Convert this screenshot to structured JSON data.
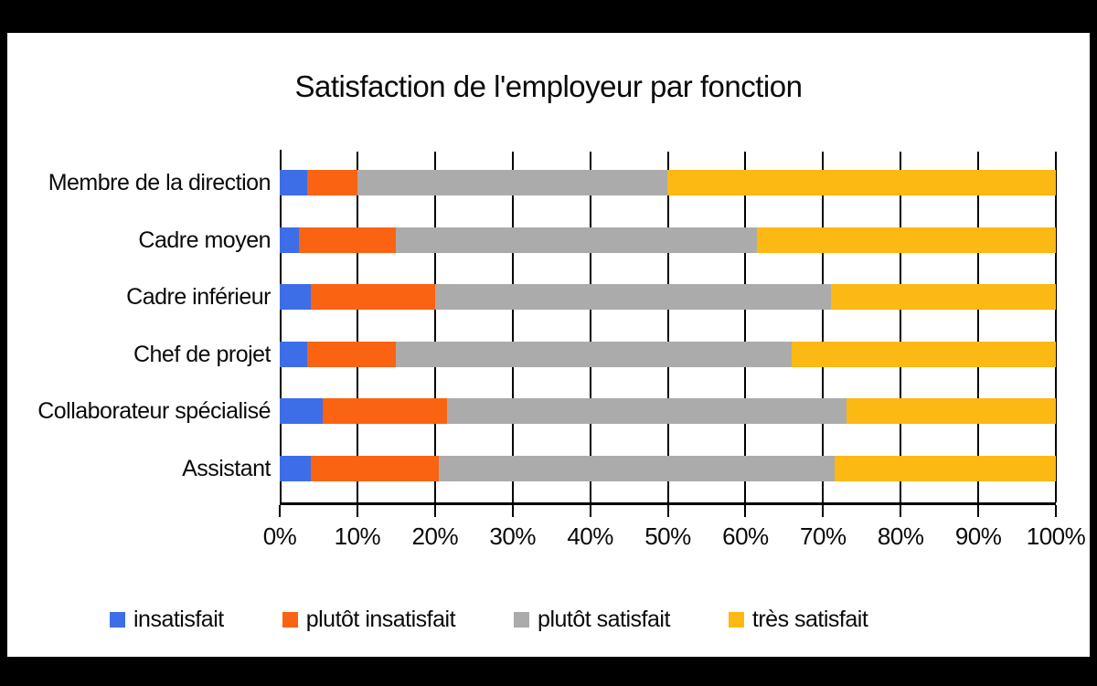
{
  "frame": {
    "border_color": "#000000",
    "background_color": "#ffffff"
  },
  "chart_data": {
    "type": "bar",
    "orientation": "horizontal",
    "stacked": true,
    "title": "Satisfaction de l'employeur par fonction",
    "categories": [
      "Membre de la direction",
      "Cadre moyen",
      "Cadre inférieur",
      "Chef de projet",
      "Collaborateur spécialisé",
      "Assistant"
    ],
    "series": [
      {
        "name": "insatisfait",
        "color": "#3d6ee7",
        "values": [
          3.5,
          2.5,
          4.0,
          3.5,
          5.5,
          4.0
        ]
      },
      {
        "name": "plutôt insatisfait",
        "color": "#f96312",
        "values": [
          6.5,
          12.5,
          16.0,
          11.5,
          16.0,
          16.5
        ]
      },
      {
        "name": "plutôt satisfait",
        "color": "#ababab",
        "values": [
          40.0,
          46.5,
          51.0,
          51.0,
          51.5,
          51.0
        ]
      },
      {
        "name": "très satisfait",
        "color": "#fcb813",
        "values": [
          50.0,
          38.5,
          29.0,
          34.0,
          27.0,
          28.5
        ]
      }
    ],
    "x_axis": {
      "min": 0,
      "max": 100,
      "tick_step": 10,
      "unit": "%",
      "tick_labels": [
        "0%",
        "10%",
        "20%",
        "30%",
        "40%",
        "50%",
        "60%",
        "70%",
        "80%",
        "90%",
        "100%"
      ]
    },
    "grid": "vertical-on",
    "gridline_color": "#000000",
    "legend_position": "bottom"
  }
}
